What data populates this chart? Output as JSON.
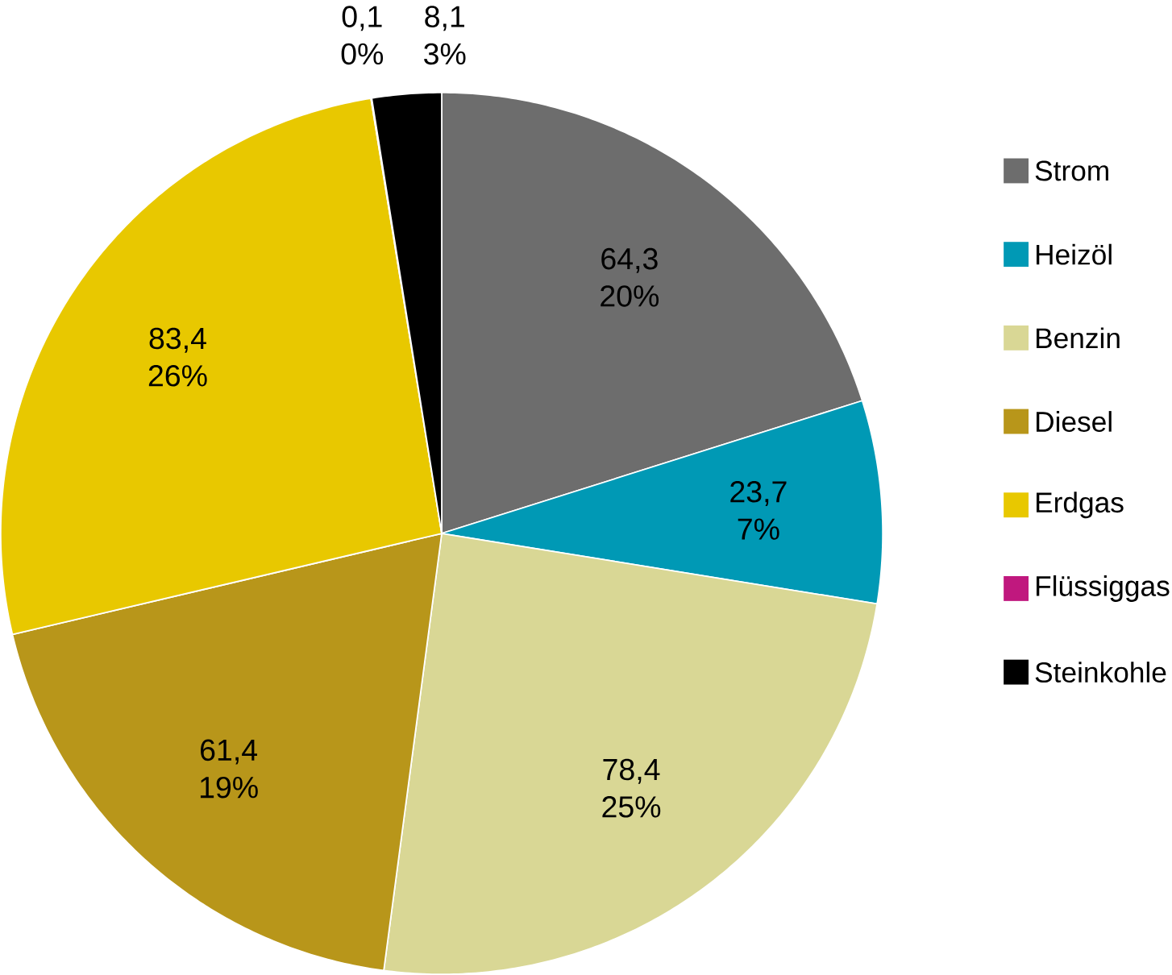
{
  "chart_data": {
    "type": "pie",
    "categories": [
      "Strom",
      "Heizöl",
      "Benzin",
      "Diesel",
      "Erdgas",
      "Flüssiggas",
      "Steinkohle"
    ],
    "values": [
      64.3,
      23.7,
      78.4,
      61.4,
      83.4,
      0.1,
      8.1
    ],
    "colors": [
      "#6d6d6d",
      "#0099b5",
      "#d9d795",
      "#b8961a",
      "#e8c800",
      "#c0187e",
      "#000000"
    ],
    "value_labels": [
      "64,3 20%",
      "23,7 7%",
      "78,4 25%",
      "61,4 19%",
      "83,4 26%",
      "0,1 0%",
      "8,1 3%"
    ],
    "legend": "right"
  }
}
